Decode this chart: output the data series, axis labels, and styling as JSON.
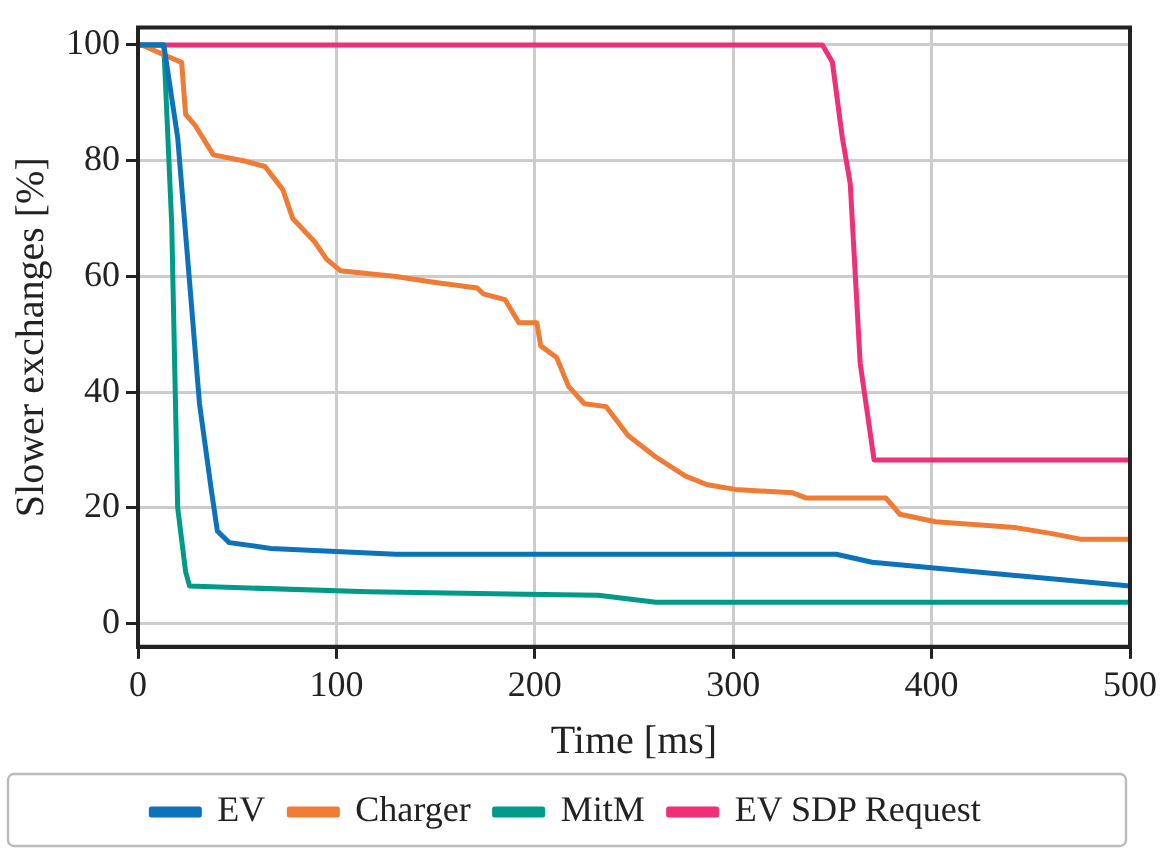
{
  "chart_data": {
    "type": "line",
    "xlabel": "Time [ms]",
    "ylabel": "Slower exchanges [%]",
    "xlim": [
      0,
      500
    ],
    "ylim": [
      -4,
      103
    ],
    "xticks": [
      0,
      100,
      200,
      300,
      400,
      500
    ],
    "yticks": [
      0,
      20,
      40,
      60,
      80,
      100
    ],
    "grid": true,
    "legend": "bottom",
    "marker": "none",
    "line_style": "solid",
    "series": [
      {
        "name": "EV",
        "color": "#0c72ba",
        "x": [
          0,
          13,
          20,
          26,
          31,
          37,
          40,
          46,
          67,
          130,
          352,
          370,
          430,
          500
        ],
        "values": [
          100,
          100,
          84,
          59,
          38,
          23,
          16,
          14,
          13,
          12,
          12,
          10.6,
          8.7,
          6.5
        ]
      },
      {
        "name": "Charger",
        "color": "#f07b35",
        "x": [
          0,
          2,
          15,
          22,
          24,
          29,
          38,
          53,
          64,
          73,
          78,
          89,
          95,
          102,
          130,
          149,
          171,
          174,
          185,
          192,
          201,
          203,
          211,
          217,
          225,
          236,
          247,
          261,
          276,
          287,
          301,
          330,
          337,
          377,
          384,
          402,
          442,
          460,
          475,
          500
        ],
        "values": [
          100,
          100,
          98,
          97,
          88,
          86,
          81,
          80,
          79,
          75,
          70,
          66,
          63,
          61,
          60,
          59,
          58,
          57,
          56,
          52,
          52,
          48,
          46,
          41,
          38,
          37.5,
          32.5,
          28.8,
          25.5,
          24,
          23.2,
          22.6,
          21.7,
          21.7,
          18.9,
          17.6,
          16.6,
          15.6,
          14.6,
          14.6
        ]
      },
      {
        "name": "MitM",
        "color": "#009a88",
        "x": [
          0,
          13,
          17,
          20,
          24,
          26,
          116,
          232,
          261,
          500
        ],
        "values": [
          100,
          100,
          69,
          20,
          9,
          6.5,
          5.5,
          4.9,
          3.7,
          3.7
        ]
      },
      {
        "name": "EV SDP Request",
        "color": "#ef2f78",
        "x": [
          0,
          345,
          350,
          355,
          359,
          364,
          371,
          500
        ],
        "values": [
          100,
          100,
          97,
          84,
          76,
          45,
          28.3,
          28.3
        ]
      }
    ]
  }
}
